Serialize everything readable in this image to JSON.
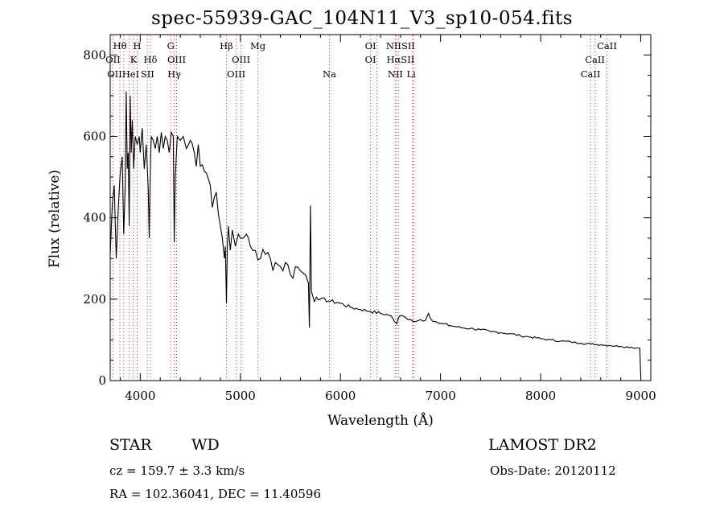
{
  "chart_data": {
    "type": "line",
    "title": "spec-55939-GAC_104N11_V3_sp10-054.fits",
    "xlabel": "Wavelength (Å)",
    "ylabel": "Flux (relative)",
    "xlim": [
      3700,
      9100
    ],
    "ylim": [
      0,
      850
    ],
    "xticks": [
      4000,
      5000,
      6000,
      7000,
      8000,
      9000
    ],
    "yticks": [
      0,
      200,
      400,
      600,
      800
    ],
    "series": [
      {
        "x": [
          3700,
          3720,
          3740,
          3760,
          3780,
          3800,
          3820,
          3835,
          3850,
          3860,
          3870,
          3880,
          3890,
          3900,
          3910,
          3920,
          3935,
          3950,
          3970,
          3990,
          4000,
          4020,
          4040,
          4060,
          4080,
          4090,
          4100,
          4110,
          4130,
          4150,
          4170,
          4190,
          4210,
          4230,
          4250,
          4270,
          4290,
          4310,
          4330,
          4340,
          4350,
          4370,
          4400,
          4430,
          4460,
          4500,
          4540,
          4580,
          4620,
          4660,
          4700,
          4740,
          4780,
          4800,
          4820,
          4840,
          4850,
          4861,
          4870,
          4880,
          4900,
          4920,
          4950,
          4980,
          5000,
          5030,
          5060,
          5100,
          5150,
          5200,
          5250,
          5300,
          5350,
          5400,
          5450,
          5500,
          5550,
          5600,
          5650,
          5680,
          5690,
          5700,
          5710,
          5720,
          5760,
          5800,
          5900,
          6000,
          6100,
          6200,
          6300,
          6400,
          6500,
          6540,
          6563,
          6580,
          6600,
          6650,
          6700,
          6750,
          6800,
          6850,
          6870,
          6880,
          6900,
          6950,
          7000,
          7100,
          7200,
          7300,
          7400,
          7500,
          7600,
          7700,
          7800,
          7900,
          8000,
          8100,
          8200,
          8300,
          8400,
          8500,
          8600,
          8700,
          8800,
          8900,
          8960,
          8990,
          9000
        ],
        "y": [
          310,
          430,
          480,
          300,
          420,
          510,
          550,
          360,
          480,
          710,
          520,
          560,
          380,
          700,
          560,
          640,
          520,
          600,
          580,
          600,
          560,
          620,
          520,
          580,
          470,
          350,
          510,
          600,
          590,
          570,
          600,
          560,
          610,
          570,
          600,
          590,
          560,
          610,
          600,
          340,
          500,
          600,
          590,
          600,
          570,
          590,
          560,
          580,
          530,
          510,
          480,
          450,
          410,
          380,
          350,
          300,
          330,
          190,
          330,
          380,
          320,
          370,
          330,
          360,
          350,
          350,
          360,
          330,
          320,
          300,
          310,
          300,
          290,
          280,
          290,
          260,
          280,
          270,
          260,
          240,
          130,
          430,
          220,
          210,
          205,
          200,
          195,
          190,
          180,
          175,
          170,
          165,
          160,
          145,
          140,
          155,
          160,
          155,
          150,
          145,
          150,
          148,
          160,
          165,
          152,
          145,
          140,
          135,
          130,
          128,
          125,
          120,
          118,
          115,
          110,
          107,
          103,
          100,
          97,
          95,
          92,
          90,
          88,
          86,
          84,
          82,
          80,
          80,
          5
        ]
      }
    ],
    "line_labels": [
      {
        "text": "Hθ",
        "x": 3797,
        "row": 1
      },
      {
        "text": "H",
        "x": 3969,
        "row": 1
      },
      {
        "text": "G",
        "x": 4304,
        "row": 1
      },
      {
        "text": "Hβ",
        "x": 4861,
        "row": 1
      },
      {
        "text": "Mg",
        "x": 5175,
        "row": 1
      },
      {
        "text": "OI",
        "x": 6300,
        "row": 1
      },
      {
        "text": "NIISII",
        "x": 6600,
        "row": 1
      },
      {
        "text": "CaII",
        "x": 8662,
        "row": 1
      },
      {
        "text": "OII",
        "x": 3727,
        "row": 2
      },
      {
        "text": "K",
        "x": 3934,
        "row": 2
      },
      {
        "text": "Hδ",
        "x": 4102,
        "row": 2
      },
      {
        "text": "OIII",
        "x": 4363,
        "row": 2
      },
      {
        "text": "OIII",
        "x": 5007,
        "row": 2
      },
      {
        "text": "OI",
        "x": 6300,
        "row": 2
      },
      {
        "text": "HαSII",
        "x": 6600,
        "row": 2
      },
      {
        "text": "CaII",
        "x": 8542,
        "row": 2
      },
      {
        "text": "OIIHeI",
        "x": 3830,
        "row": 3
      },
      {
        "text": "SII",
        "x": 4072,
        "row": 3
      },
      {
        "text": "Hγ",
        "x": 4340,
        "row": 3
      },
      {
        "text": "OIII",
        "x": 4959,
        "row": 3
      },
      {
        "text": "Na",
        "x": 5890,
        "row": 3
      },
      {
        "text": "NII",
        "x": 6548,
        "row": 3
      },
      {
        "text": "Li",
        "x": 6707,
        "row": 3
      },
      {
        "text": "CaII",
        "x": 8498,
        "row": 3
      }
    ],
    "line_markers": [
      3727,
      3797,
      3835,
      3889,
      3934,
      3969,
      4072,
      4102,
      4304,
      4340,
      4363,
      4861,
      4959,
      5007,
      5175,
      5890,
      6300,
      6364,
      6548,
      6563,
      6583,
      6717,
      6731,
      8498,
      8542,
      8662
    ]
  },
  "info": {
    "object_class": "STAR",
    "subclass": "WD",
    "survey": "LAMOST DR2",
    "redshift": "cz = 159.7 ± 3.3 km/s",
    "obs_date": "Obs-Date: 20120112",
    "coords": "RA = 102.36041, DEC =  11.40596"
  },
  "colors": {
    "marker_lines": "#d9342b",
    "spectrum": "#000000"
  }
}
